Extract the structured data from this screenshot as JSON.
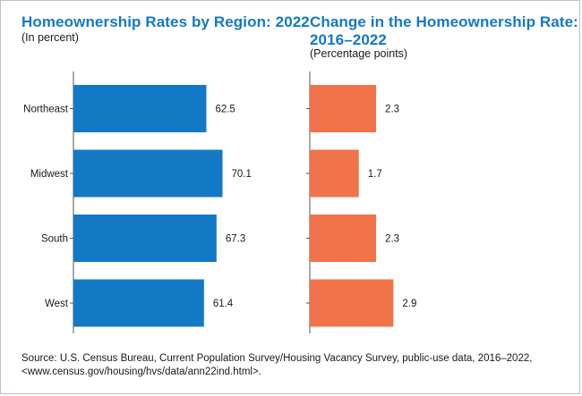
{
  "panels": [
    {
      "title": "Homeownership Rates by Region: 2022",
      "subtitle": "(In percent)"
    },
    {
      "title_line1": "Change in the Homeownership Rate:",
      "title_line2": "2016–2022",
      "subtitle": "(Percentage points)"
    }
  ],
  "source": {
    "line1": "Source: U.S. Census Bureau, Current Population Survey/Housing Vacancy Survey, public-use data, 2016–2022,",
    "line2": "<www.census.gov/housing/hvs/data/ann22ind.html>."
  },
  "chart_data": [
    {
      "type": "bar",
      "orientation": "horizontal",
      "title": "Homeownership Rates by Region: 2022",
      "subtitle": "(In percent)",
      "categories": [
        "Northeast",
        "Midwest",
        "South",
        "West"
      ],
      "values": [
        62.5,
        70.1,
        67.3,
        61.4
      ],
      "data_labels": [
        "62.5",
        "70.1",
        "67.3",
        "61.4"
      ],
      "xlim": [
        0,
        100
      ],
      "color": "#1479c4",
      "grid": false
    },
    {
      "type": "bar",
      "orientation": "horizontal",
      "title": "Change in the Homeownership Rate: 2016–2022",
      "subtitle": "(Percentage points)",
      "categories": [
        "Northeast",
        "Midwest",
        "South",
        "West"
      ],
      "values": [
        2.3,
        1.7,
        2.3,
        2.9
      ],
      "data_labels": [
        "2.3",
        "1.7",
        "2.3",
        "2.9"
      ],
      "xlim": [
        0,
        9
      ],
      "color": "#f1734a",
      "grid": false
    }
  ]
}
